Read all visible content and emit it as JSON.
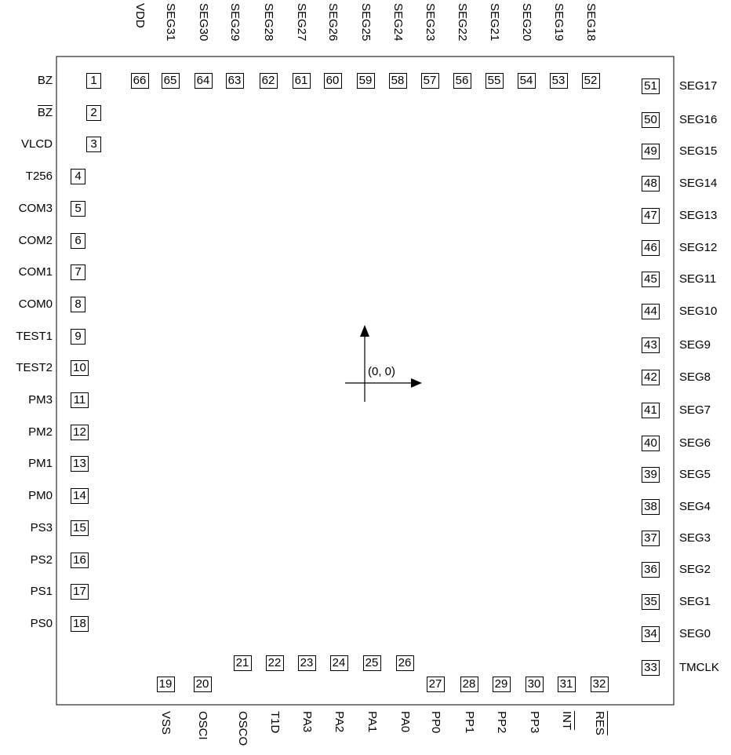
{
  "origin_label": "(0, 0)",
  "pins": [
    {
      "n": "1",
      "name": "BZ"
    },
    {
      "n": "2",
      "name": "BZ",
      "overline": true
    },
    {
      "n": "3",
      "name": "VLCD"
    },
    {
      "n": "4",
      "name": "T256"
    },
    {
      "n": "5",
      "name": "COM3"
    },
    {
      "n": "6",
      "name": "COM2"
    },
    {
      "n": "7",
      "name": "COM1"
    },
    {
      "n": "8",
      "name": "COM0"
    },
    {
      "n": "9",
      "name": "TEST1"
    },
    {
      "n": "10",
      "name": "TEST2"
    },
    {
      "n": "11",
      "name": "PM3"
    },
    {
      "n": "12",
      "name": "PM2"
    },
    {
      "n": "13",
      "name": "PM1"
    },
    {
      "n": "14",
      "name": "PM0"
    },
    {
      "n": "15",
      "name": "PS3"
    },
    {
      "n": "16",
      "name": "PS2"
    },
    {
      "n": "17",
      "name": "PS1"
    },
    {
      "n": "18",
      "name": "PS0"
    },
    {
      "n": "19",
      "name": "VSS"
    },
    {
      "n": "20",
      "name": "OSCI"
    },
    {
      "n": "21",
      "name": "OSCO"
    },
    {
      "n": "22",
      "name": "T1D"
    },
    {
      "n": "23",
      "name": "PA3"
    },
    {
      "n": "24",
      "name": "PA2"
    },
    {
      "n": "25",
      "name": "PA1"
    },
    {
      "n": "26",
      "name": "PA0"
    },
    {
      "n": "27",
      "name": "PP0"
    },
    {
      "n": "28",
      "name": "PP1"
    },
    {
      "n": "29",
      "name": "PP2"
    },
    {
      "n": "30",
      "name": "PP3"
    },
    {
      "n": "31",
      "name": "INT",
      "overline": true
    },
    {
      "n": "32",
      "name": "RES",
      "overline": true
    },
    {
      "n": "33",
      "name": "TMCLK"
    },
    {
      "n": "34",
      "name": "SEG0"
    },
    {
      "n": "35",
      "name": "SEG1"
    },
    {
      "n": "36",
      "name": "SEG2"
    },
    {
      "n": "37",
      "name": "SEG3"
    },
    {
      "n": "38",
      "name": "SEG4"
    },
    {
      "n": "39",
      "name": "SEG5"
    },
    {
      "n": "40",
      "name": "SEG6"
    },
    {
      "n": "41",
      "name": "SEG7"
    },
    {
      "n": "42",
      "name": "SEG8"
    },
    {
      "n": "43",
      "name": "SEG9"
    },
    {
      "n": "44",
      "name": "SEG10"
    },
    {
      "n": "45",
      "name": "SEG11"
    },
    {
      "n": "46",
      "name": "SEG12"
    },
    {
      "n": "47",
      "name": "SEG13"
    },
    {
      "n": "48",
      "name": "SEG14"
    },
    {
      "n": "49",
      "name": "SEG15"
    },
    {
      "n": "50",
      "name": "SEG16"
    },
    {
      "n": "51",
      "name": "SEG17"
    },
    {
      "n": "52",
      "name": "SEG18"
    },
    {
      "n": "53",
      "name": "SEG19"
    },
    {
      "n": "54",
      "name": "SEG20"
    },
    {
      "n": "55",
      "name": "SEG21"
    },
    {
      "n": "56",
      "name": "SEG22"
    },
    {
      "n": "57",
      "name": "SEG23"
    },
    {
      "n": "58",
      "name": "SEG24"
    },
    {
      "n": "59",
      "name": "SEG25"
    },
    {
      "n": "60",
      "name": "SEG26"
    },
    {
      "n": "61",
      "name": "SEG27"
    },
    {
      "n": "62",
      "name": "SEG28"
    },
    {
      "n": "63",
      "name": "SEG29"
    },
    {
      "n": "64",
      "name": "SEG30"
    },
    {
      "n": "65",
      "name": "SEG31"
    },
    {
      "n": "66",
      "name": "VDD"
    }
  ]
}
